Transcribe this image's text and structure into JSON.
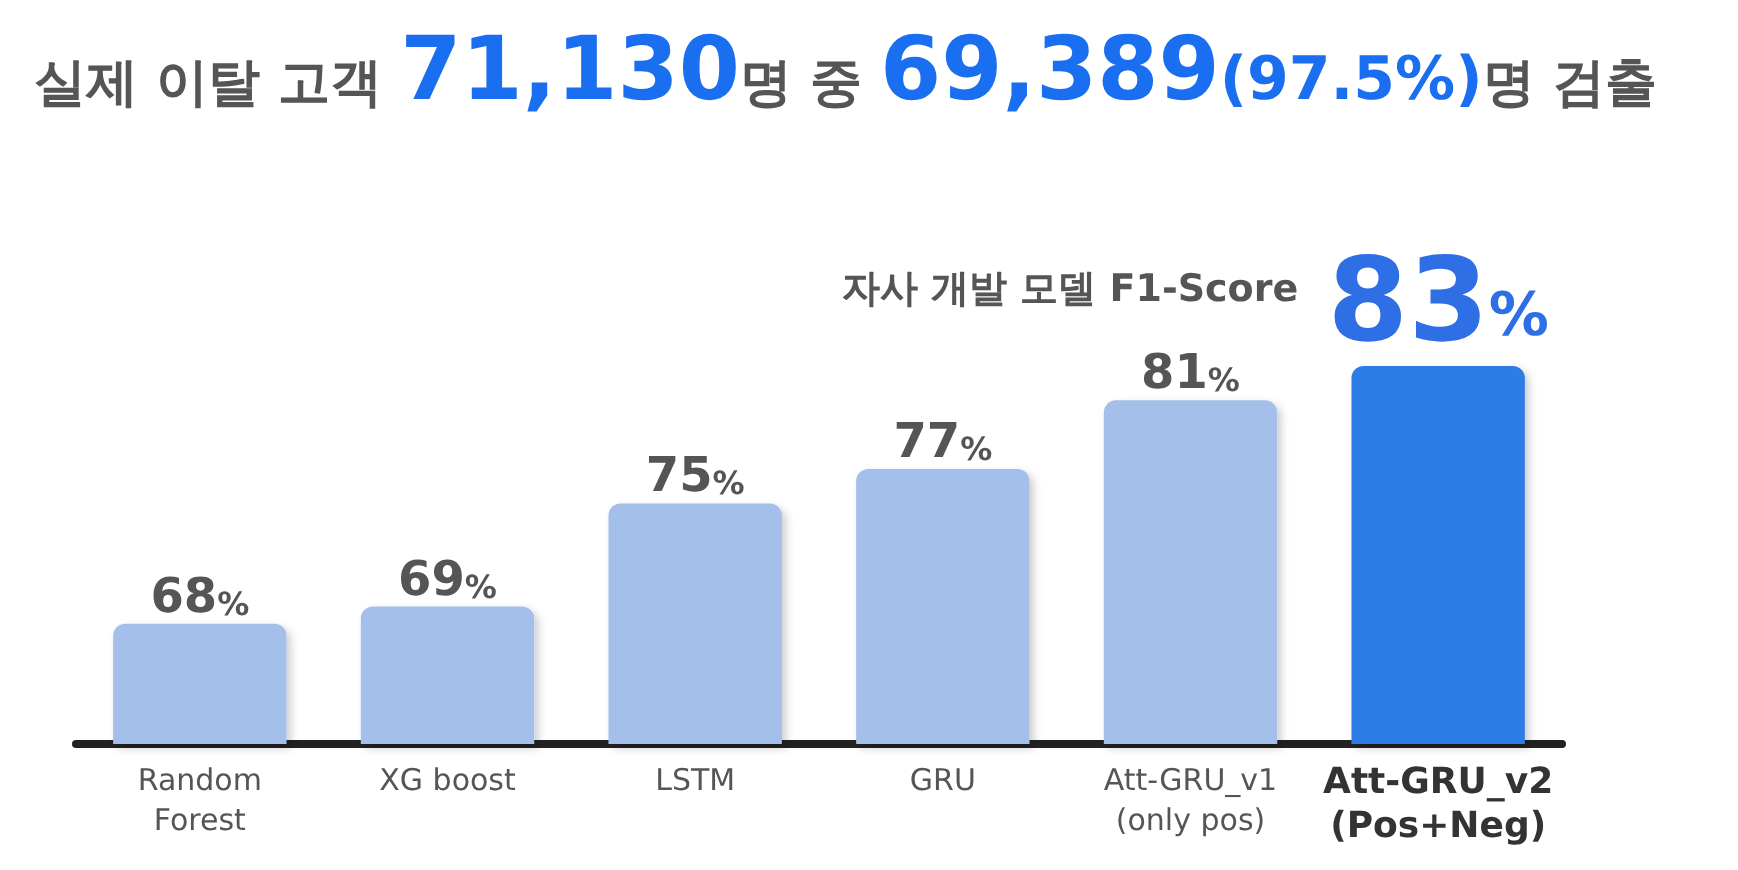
{
  "chart_data": {
    "type": "bar",
    "title": "실제 이탈 고객 71,130명 중 69,389(97.5%)명 검출",
    "categories": [
      "Random Forest",
      "XG boost",
      "LSTM",
      "GRU",
      "Att-GRU_v1 (only pos)",
      "Att-GRU_v2 (Pos+Neg)"
    ],
    "values": [
      68,
      69,
      75,
      77,
      81,
      83
    ],
    "colors": [
      "#a3bfea",
      "#a3bfea",
      "#a3bfea",
      "#a3bfea",
      "#a3bfea",
      "#2f7be6"
    ],
    "value_labels": [
      "68%",
      "69%",
      "75%",
      "77%",
      "81%",
      "83%"
    ],
    "annotations": [
      "자사 개발 모델 F1-Score"
    ],
    "ylim": [
      61,
      83
    ],
    "grid": false
  }
}
